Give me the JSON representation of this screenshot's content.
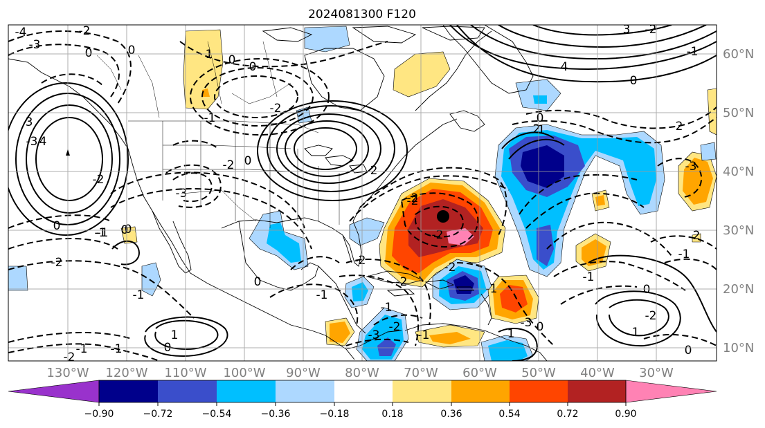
{
  "title": "2024081300 F120",
  "map": {
    "lon_labels": [
      "130°W",
      "120°W",
      "110°W",
      "100°W",
      "90°W",
      "80°W",
      "70°W",
      "60°W",
      "50°W",
      "40°W",
      "30°W"
    ],
    "lat_labels": [
      "60°N",
      "50°N",
      "40°N",
      "30°N",
      "20°N",
      "10°N"
    ],
    "contour_labels": [
      "-4",
      "-3",
      "-2",
      "0",
      "0",
      "1",
      "0",
      "0",
      "-2",
      "-1",
      "-3",
      "4",
      "3",
      "-2",
      "0",
      "-3",
      "-2",
      "2",
      "3",
      "4",
      "0",
      "-2",
      "-1",
      "-2",
      "-1",
      "0",
      "0",
      "-2",
      "-2",
      "-1",
      "-3",
      "1",
      "0",
      "-1",
      "-2",
      "-2",
      "2",
      "1",
      "-2",
      "-2",
      "0",
      "-2",
      "-1",
      "-1",
      "0",
      "-1",
      "-1",
      "-1",
      "-3",
      "1",
      "0",
      "1",
      "0",
      "-1",
      "-3",
      "-2",
      "0",
      "2",
      "0",
      "-1",
      "-1",
      "-2",
      "-2"
    ],
    "marker": "black-dot"
  },
  "colorbar": {
    "tick_labels": [
      "−0.90",
      "−0.72",
      "−0.54",
      "−0.36",
      "−0.18",
      "0.18",
      "0.36",
      "0.54",
      "0.72",
      "0.90"
    ],
    "colors": [
      "#9932cc",
      "#00008b",
      "#3a4ecb",
      "#00bfff",
      "#add8ff",
      "#ffffff",
      "#ffe682",
      "#ffa500",
      "#ff4500",
      "#b22222",
      "#ff82b4"
    ]
  }
}
